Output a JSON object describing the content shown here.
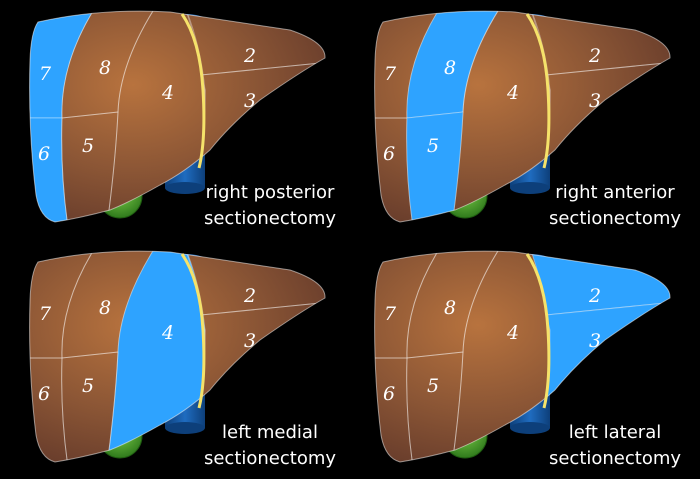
{
  "panels": [
    {
      "segments": [
        {
          "text": "7",
          "highlighted": true
        },
        {
          "text": "8",
          "highlighted": false
        },
        {
          "text": "4",
          "highlighted": false
        },
        {
          "text": "2",
          "highlighted": false
        },
        {
          "text": "3",
          "highlighted": false
        },
        {
          "text": "6",
          "highlighted": true
        },
        {
          "text": "5",
          "highlighted": false
        }
      ],
      "caption": [
        "right posterior",
        "sectionectomy"
      ]
    },
    {
      "segments": [
        {
          "text": "7",
          "highlighted": false
        },
        {
          "text": "8",
          "highlighted": true
        },
        {
          "text": "4",
          "highlighted": false
        },
        {
          "text": "2",
          "highlighted": false
        },
        {
          "text": "3",
          "highlighted": false
        },
        {
          "text": "6",
          "highlighted": false
        },
        {
          "text": "5",
          "highlighted": true
        }
      ],
      "caption": [
        "right anterior",
        "sectionectomy"
      ]
    },
    {
      "segments": [
        {
          "text": "7",
          "highlighted": false
        },
        {
          "text": "8",
          "highlighted": false
        },
        {
          "text": "4",
          "highlighted": true
        },
        {
          "text": "2",
          "highlighted": false
        },
        {
          "text": "3",
          "highlighted": false
        },
        {
          "text": "6",
          "highlighted": false
        },
        {
          "text": "5",
          "highlighted": false
        }
      ],
      "caption": [
        "left medial",
        "sectionectomy"
      ]
    },
    {
      "segments": [
        {
          "text": "7",
          "highlighted": false
        },
        {
          "text": "8",
          "highlighted": false
        },
        {
          "text": "4",
          "highlighted": false
        },
        {
          "text": "2",
          "highlighted": true
        },
        {
          "text": "3",
          "highlighted": true
        },
        {
          "text": "6",
          "highlighted": false
        },
        {
          "text": "5",
          "highlighted": false
        }
      ],
      "caption": [
        "left lateral",
        "sectionectomy"
      ]
    }
  ]
}
